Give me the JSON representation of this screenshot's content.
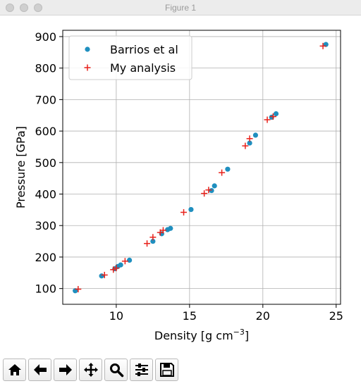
{
  "window": {
    "title": "Figure 1"
  },
  "toolbar": {
    "buttons": [
      {
        "name": "home-button",
        "icon": "home-icon"
      },
      {
        "name": "back-button",
        "icon": "arrow-left-icon"
      },
      {
        "name": "forward-button",
        "icon": "arrow-right-icon"
      },
      {
        "name": "pan-button",
        "icon": "move-icon"
      },
      {
        "name": "zoom-button",
        "icon": "magnifier-icon"
      },
      {
        "name": "configure-subplots-button",
        "icon": "sliders-icon"
      },
      {
        "name": "save-button",
        "icon": "floppy-disk-icon"
      }
    ]
  },
  "chart_data": {
    "type": "scatter",
    "title": "",
    "xlabel": "Density [g cm",
    "xlabel_sup": "−3",
    "xlabel_close": "]",
    "ylabel": "Pressure [GPa]",
    "xlim": [
      6.35,
      25.3
    ],
    "ylim": [
      50,
      920
    ],
    "xticks": [
      10,
      15,
      20,
      25
    ],
    "yticks": [
      100,
      200,
      300,
      400,
      500,
      600,
      700,
      800,
      900
    ],
    "grid": true,
    "legend_position": "upper left",
    "series": [
      {
        "name": "Barrios et al",
        "marker": "circle",
        "color": "#1f8fbf",
        "points": [
          [
            7.2,
            93
          ],
          [
            9.0,
            140
          ],
          [
            9.9,
            163
          ],
          [
            10.1,
            170
          ],
          [
            10.3,
            175
          ],
          [
            10.9,
            190
          ],
          [
            12.5,
            250
          ],
          [
            13.1,
            274
          ],
          [
            13.5,
            287
          ],
          [
            13.7,
            291
          ],
          [
            15.1,
            351
          ],
          [
            16.5,
            411
          ],
          [
            16.7,
            426
          ],
          [
            17.6,
            479
          ],
          [
            19.1,
            562
          ],
          [
            19.5,
            587
          ],
          [
            20.6,
            644
          ],
          [
            20.9,
            655
          ],
          [
            24.3,
            875
          ]
        ]
      },
      {
        "name": "My analysis",
        "marker": "plus",
        "color": "#e8211a",
        "points": [
          [
            7.4,
            98
          ],
          [
            9.2,
            143
          ],
          [
            9.8,
            160
          ],
          [
            10.0,
            165
          ],
          [
            10.6,
            187
          ],
          [
            12.1,
            243
          ],
          [
            12.5,
            263
          ],
          [
            13.0,
            278
          ],
          [
            13.2,
            285
          ],
          [
            14.6,
            342
          ],
          [
            16.0,
            402
          ],
          [
            16.3,
            413
          ],
          [
            17.2,
            468
          ],
          [
            18.8,
            553
          ],
          [
            19.1,
            576
          ],
          [
            20.3,
            636
          ],
          [
            20.7,
            646
          ],
          [
            24.1,
            870
          ]
        ]
      }
    ]
  }
}
